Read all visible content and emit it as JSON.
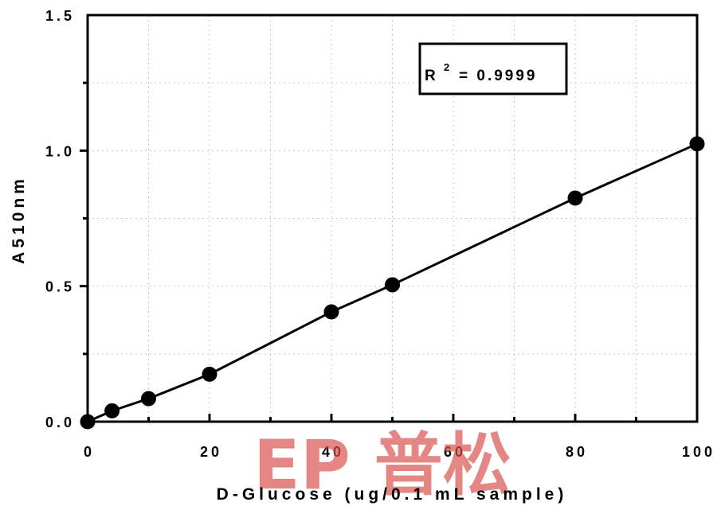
{
  "chart_data": {
    "type": "scatter",
    "xlabel": "D-Glucose (ug/0.1 mL sample)",
    "ylabel": "A510nm",
    "xlim": [
      0,
      100
    ],
    "ylim": [
      0,
      1.5
    ],
    "x_ticks": [
      0,
      20,
      40,
      60,
      80,
      100
    ],
    "x_tick_labels": [
      "0",
      "20",
      "40",
      "60",
      "80",
      "100"
    ],
    "y_ticks": [
      0,
      0.5,
      1.0,
      1.5
    ],
    "y_tick_labels": [
      "0.0",
      "0.5",
      "1.0",
      "1.5"
    ],
    "grid": true,
    "series": [
      {
        "x": [
          0,
          4,
          10,
          20,
          40,
          50,
          80,
          100
        ],
        "y": [
          0.0,
          0.04,
          0.085,
          0.175,
          0.405,
          0.505,
          0.825,
          1.025
        ],
        "line": true,
        "color": "#000000"
      }
    ],
    "annotation": {
      "r_label": "R",
      "exponent": "2",
      "value_text": "= 0.9999"
    }
  },
  "watermark": {
    "text": "EP 普松",
    "color": "#d9534f"
  }
}
